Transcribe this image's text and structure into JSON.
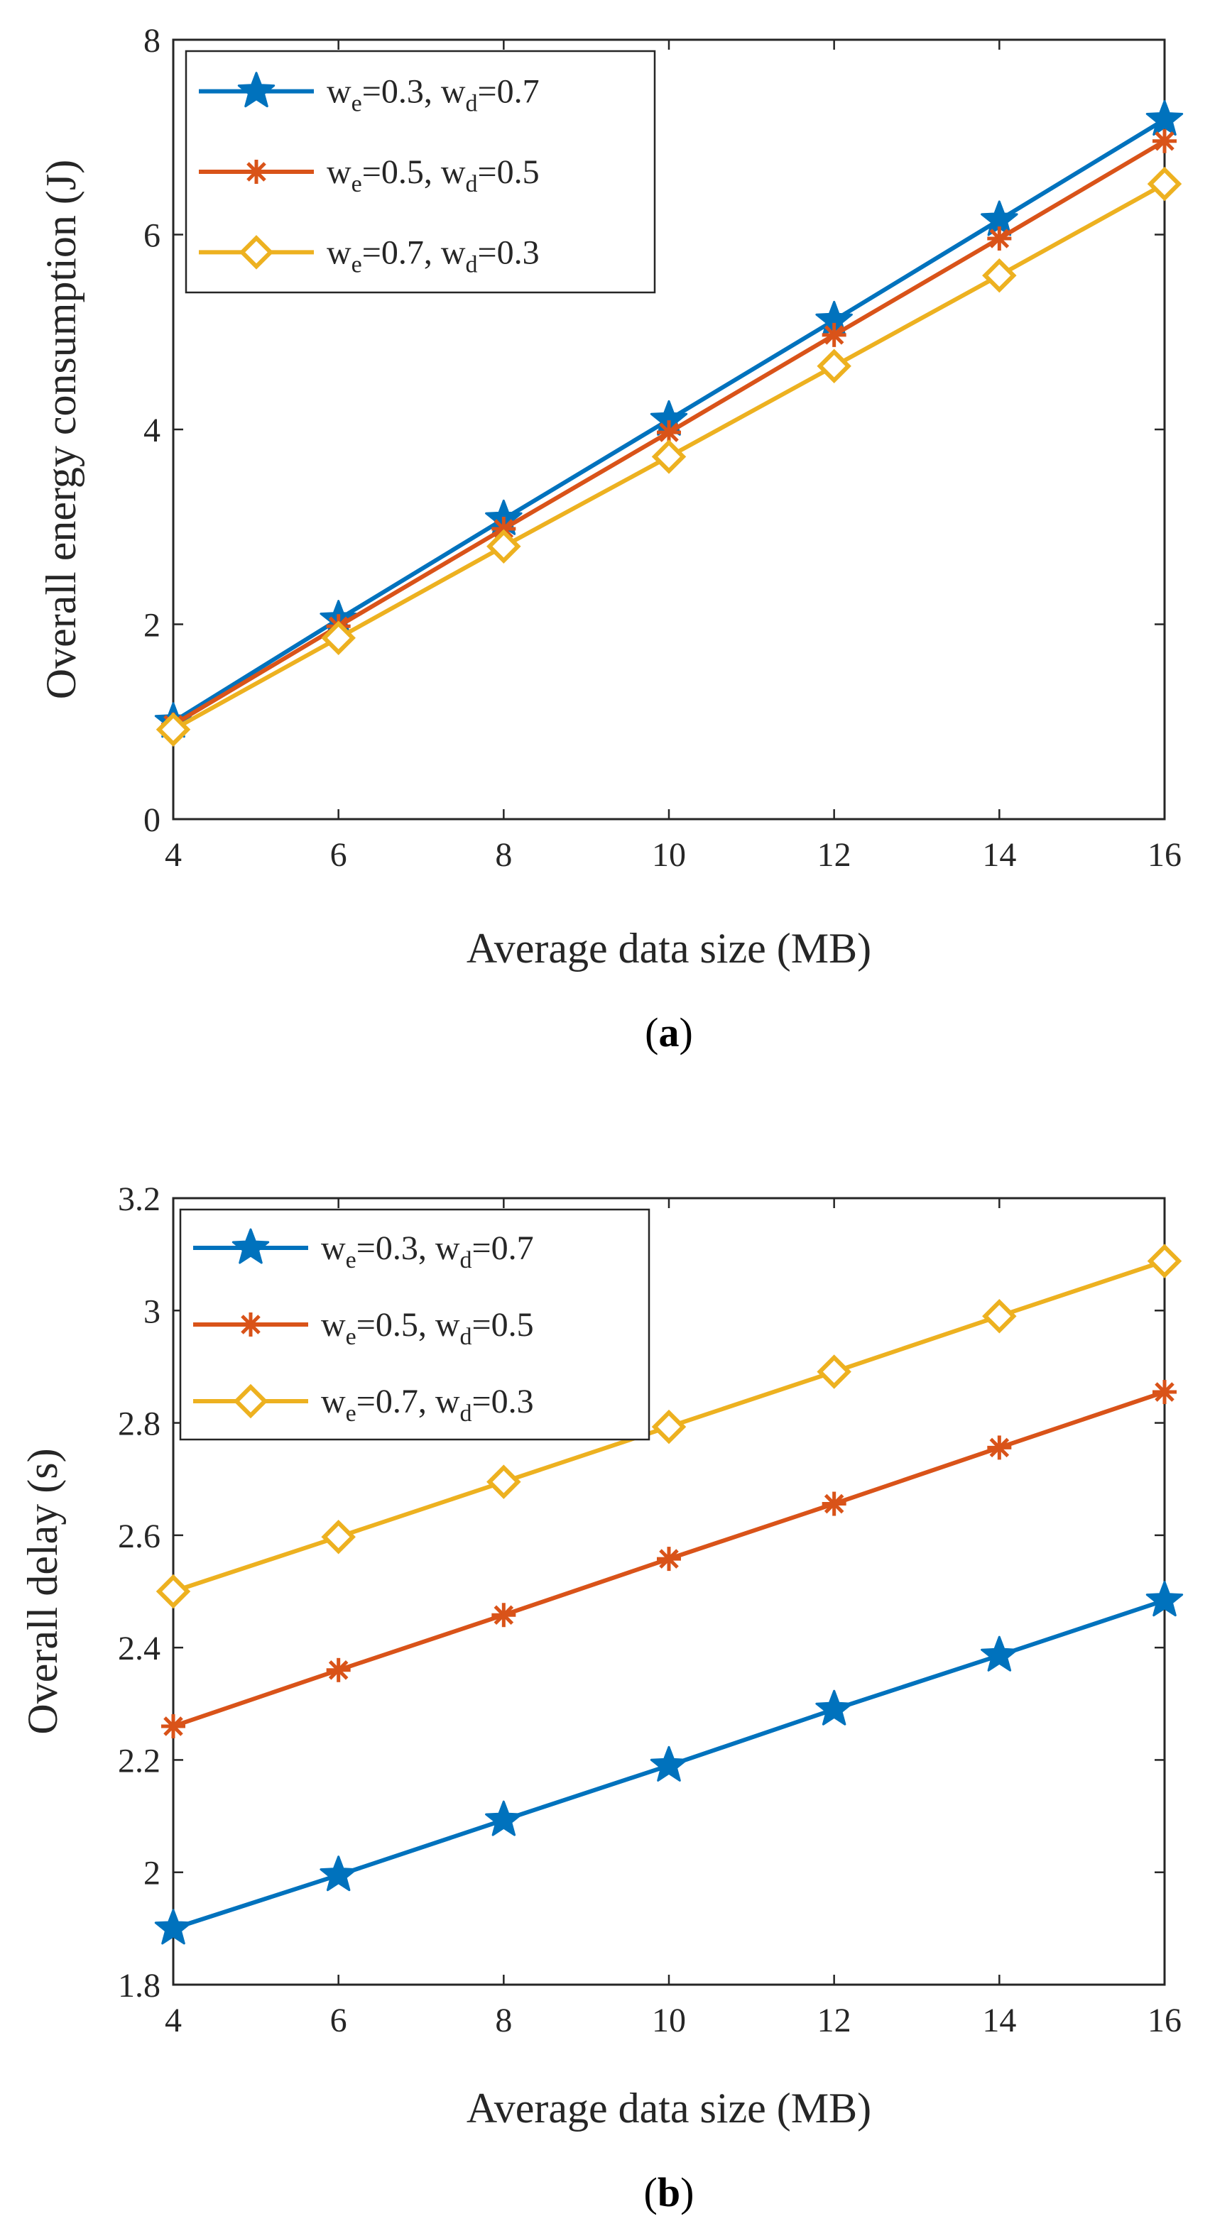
{
  "chart_data": [
    {
      "type": "line",
      "caption": "a",
      "xlabel": "Average data size (MB)",
      "ylabel": "Overall energy consumption (J)",
      "x": [
        4,
        6,
        8,
        10,
        12,
        14,
        16
      ],
      "xlim": [
        4,
        16
      ],
      "ylim": [
        0,
        8
      ],
      "xticks": [
        "4",
        "6",
        "8",
        "10",
        "12",
        "14",
        "16"
      ],
      "yticks": [
        "0",
        "2",
        "4",
        "6",
        "8"
      ],
      "legend_position": "top-left",
      "series": [
        {
          "name": "we=0.3, wd=0.7",
          "w_e": "0.3",
          "w_d": "0.7",
          "marker": "star",
          "color": "#0072BD",
          "values": [
            1.0,
            2.05,
            3.08,
            4.1,
            5.12,
            6.15,
            7.18
          ]
        },
        {
          "name": "we=0.5, wd=0.5",
          "w_e": "0.5",
          "w_d": "0.5",
          "marker": "asterisk",
          "color": "#D95319",
          "values": [
            0.97,
            1.98,
            2.98,
            3.97,
            4.97,
            5.96,
            6.96
          ]
        },
        {
          "name": "we=0.7, wd=0.3",
          "w_e": "0.7",
          "w_d": "0.3",
          "marker": "diamond",
          "color": "#EDB120",
          "values": [
            0.92,
            1.86,
            2.8,
            3.72,
            4.65,
            5.58,
            6.52
          ]
        }
      ]
    },
    {
      "type": "line",
      "caption": "b",
      "xlabel": "Average data size (MB)",
      "ylabel": "Overall delay (s)",
      "x": [
        4,
        6,
        8,
        10,
        12,
        14,
        16
      ],
      "xlim": [
        4,
        16
      ],
      "ylim": [
        1.8,
        3.2
      ],
      "xticks": [
        "4",
        "6",
        "8",
        "10",
        "12",
        "14",
        "16"
      ],
      "yticks": [
        "1.8",
        "2",
        "2.2",
        "2.4",
        "2.6",
        "2.8",
        "3",
        "3.2"
      ],
      "legend_position": "top-left",
      "series": [
        {
          "name": "we=0.3, wd=0.7",
          "w_e": "0.3",
          "w_d": "0.7",
          "marker": "star",
          "color": "#0072BD",
          "values": [
            1.9,
            1.995,
            2.093,
            2.19,
            2.29,
            2.386,
            2.484
          ]
        },
        {
          "name": "we=0.5, wd=0.5",
          "w_e": "0.5",
          "w_d": "0.5",
          "marker": "asterisk",
          "color": "#D95319",
          "values": [
            2.26,
            2.36,
            2.458,
            2.558,
            2.656,
            2.756,
            2.855
          ]
        },
        {
          "name": "we=0.7, wd=0.3",
          "w_e": "0.7",
          "w_d": "0.3",
          "marker": "diamond",
          "color": "#EDB120",
          "values": [
            2.5,
            2.597,
            2.695,
            2.793,
            2.891,
            2.99,
            3.088
          ]
        }
      ]
    }
  ]
}
